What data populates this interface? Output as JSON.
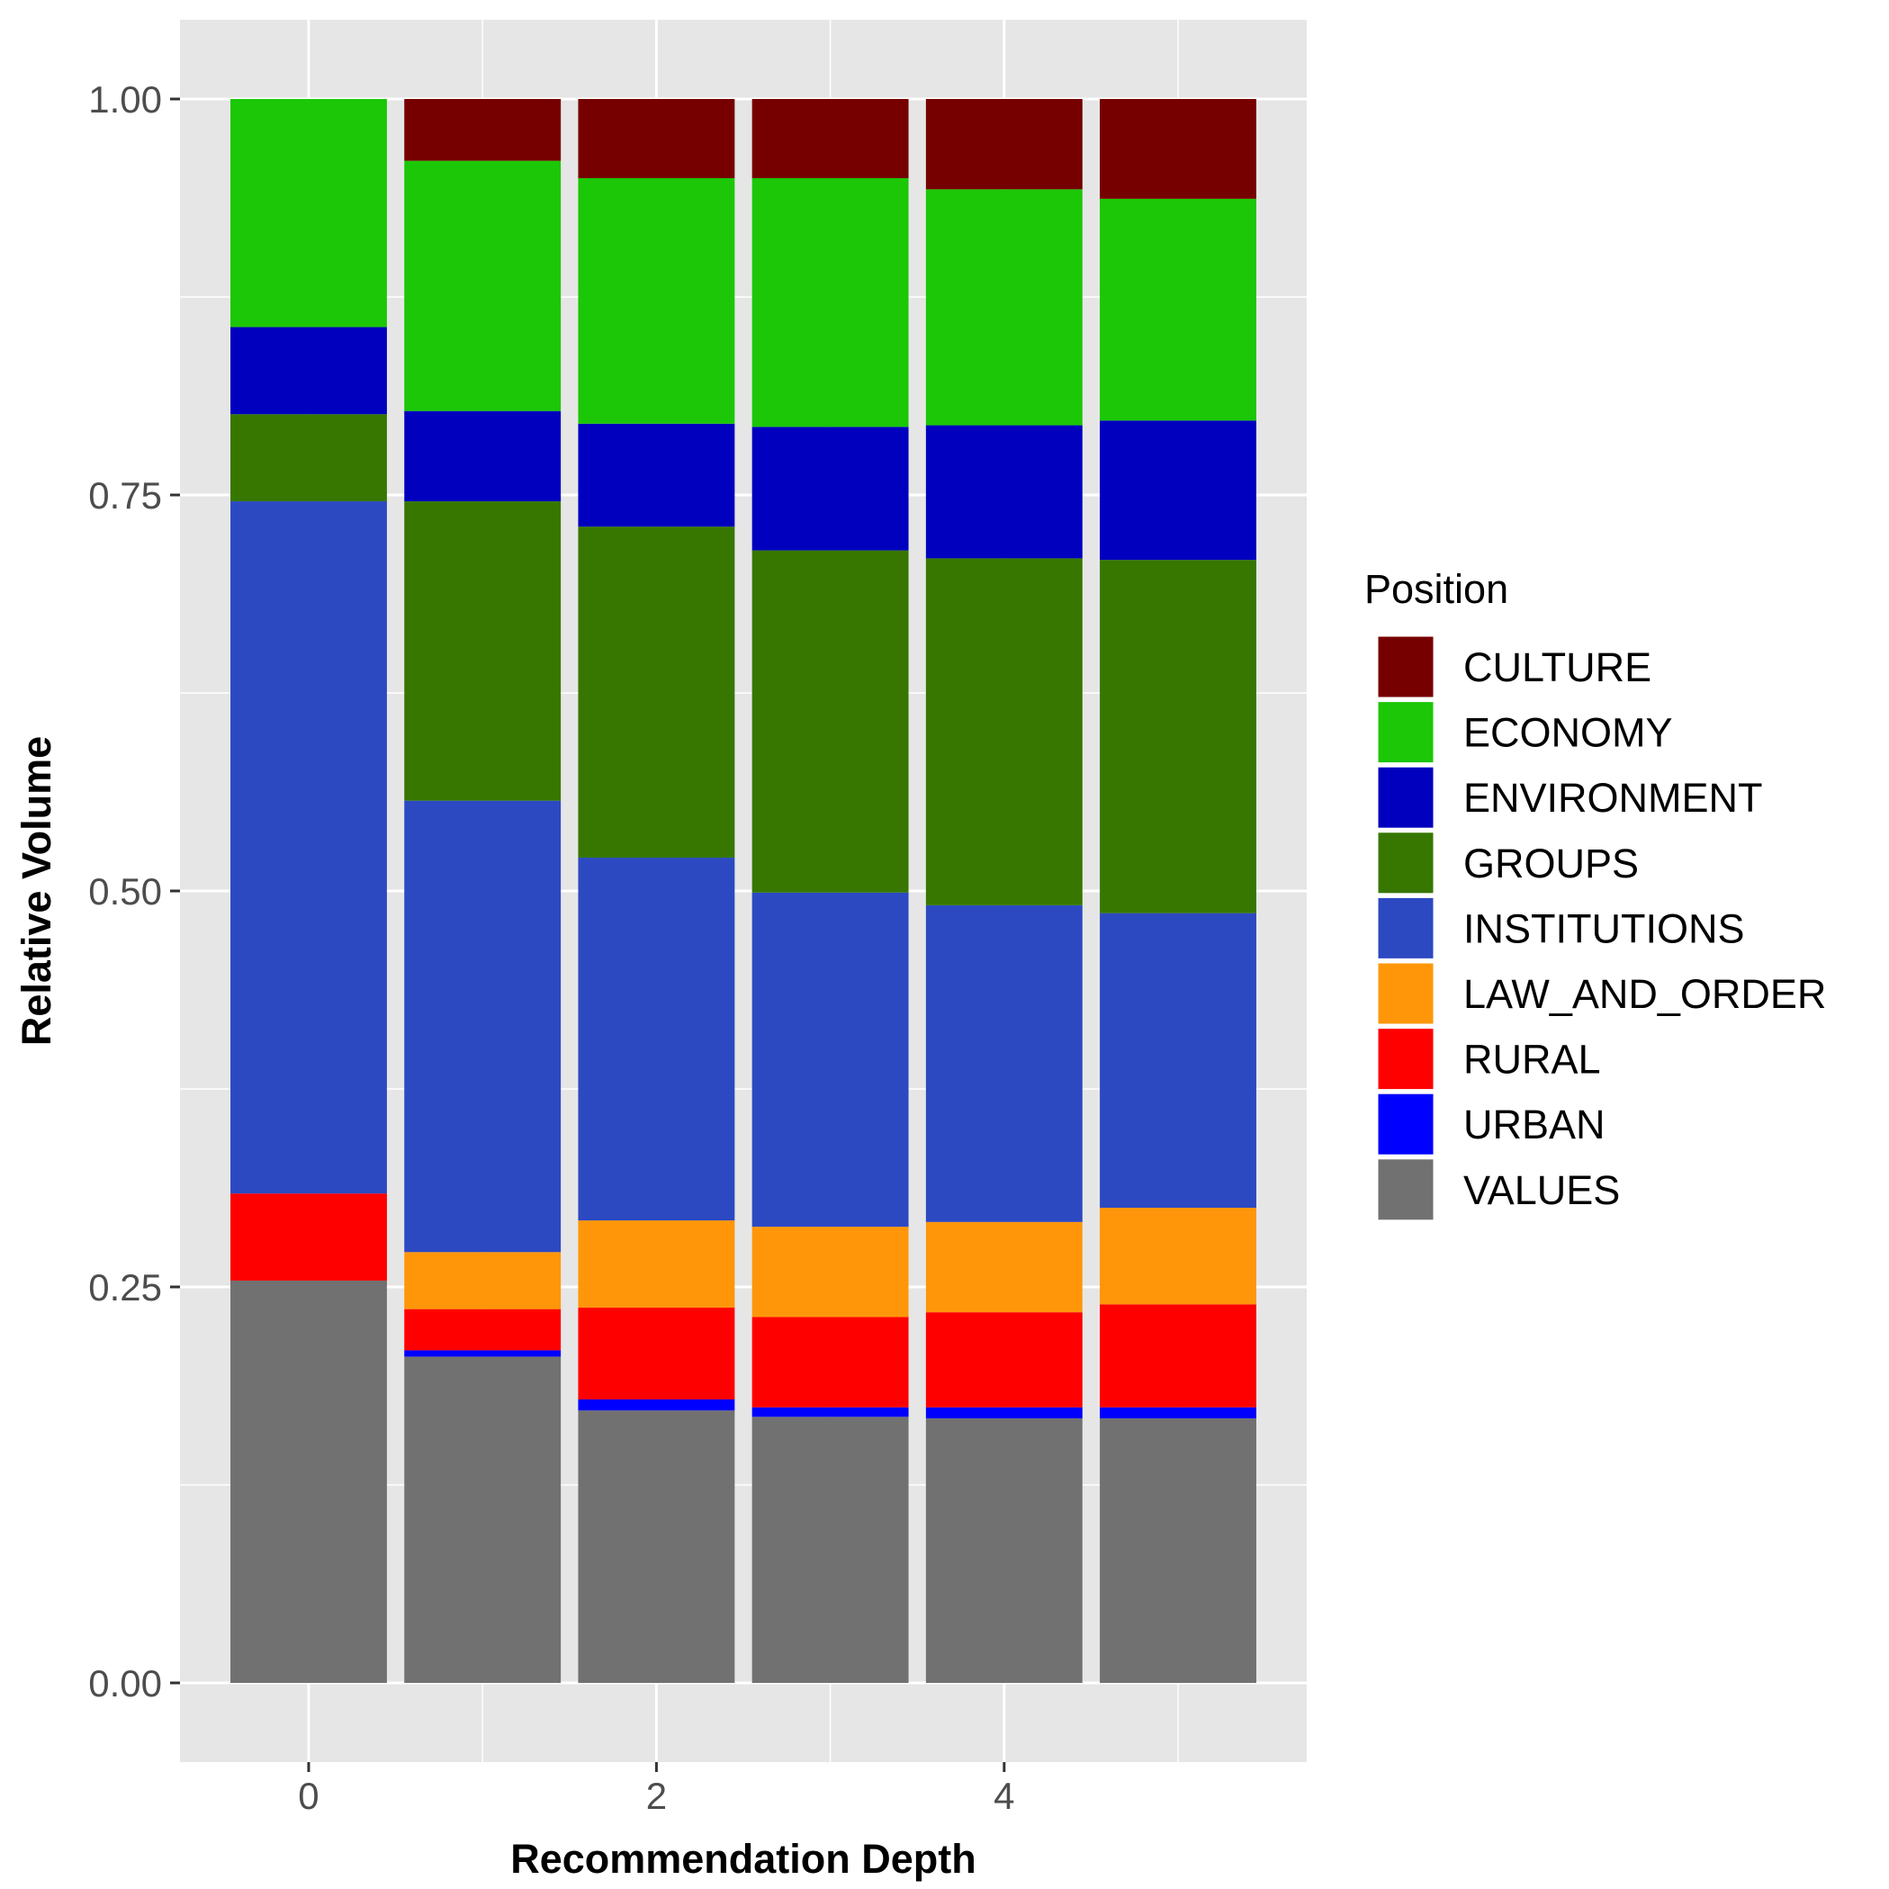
{
  "chart_data": {
    "type": "bar",
    "stacked": true,
    "xlabel": "Recommendation Depth",
    "ylabel": "Relative Volume",
    "x": [
      0,
      1,
      2,
      3,
      4,
      5
    ],
    "x_ticks": [
      "0",
      "2",
      "4"
    ],
    "x_tick_values": [
      0,
      2,
      4
    ],
    "y_ticks": [
      "0.00",
      "0.25",
      "0.50",
      "0.75",
      "1.00"
    ],
    "y_tick_values": [
      0,
      0.25,
      0.5,
      0.75,
      1.0
    ],
    "xlim": [
      -0.74,
      5.74
    ],
    "ylim": [
      -0.05,
      1.05
    ],
    "grid": true,
    "legend": {
      "title": "Position",
      "placement": "right"
    },
    "series": [
      {
        "name": "VALUES",
        "color": "#717171",
        "values": [
          0.254,
          0.206,
          0.172,
          0.168,
          0.167,
          0.167
        ]
      },
      {
        "name": "URBAN",
        "color": "#0000FF",
        "values": [
          0.0,
          0.004,
          0.007,
          0.006,
          0.007,
          0.007
        ]
      },
      {
        "name": "RURAL",
        "color": "#FF0000",
        "values": [
          0.055,
          0.026,
          0.058,
          0.057,
          0.06,
          0.065
        ]
      },
      {
        "name": "LAW_AND_ORDER",
        "color": "#FF9609",
        "values": [
          0.0,
          0.036,
          0.055,
          0.057,
          0.057,
          0.061
        ]
      },
      {
        "name": "INSTITUTIONS",
        "color": "#2C49C2",
        "values": [
          0.437,
          0.285,
          0.229,
          0.211,
          0.2,
          0.186
        ]
      },
      {
        "name": "GROUPS",
        "color": "#377700",
        "values": [
          0.055,
          0.189,
          0.209,
          0.216,
          0.219,
          0.223
        ]
      },
      {
        "name": "ENVIRONMENT",
        "color": "#0000BE",
        "values": [
          0.055,
          0.057,
          0.065,
          0.078,
          0.084,
          0.088
        ]
      },
      {
        "name": "ECONOMY",
        "color": "#1BC706",
        "values": [
          0.144,
          0.158,
          0.155,
          0.157,
          0.149,
          0.14
        ]
      },
      {
        "name": "CULTURE",
        "color": "#760000",
        "values": [
          0.0,
          0.039,
          0.05,
          0.05,
          0.057,
          0.063
        ]
      }
    ],
    "legend_order": [
      "CULTURE",
      "ECONOMY",
      "ENVIRONMENT",
      "GROUPS",
      "INSTITUTIONS",
      "LAW_AND_ORDER",
      "RURAL",
      "URBAN",
      "VALUES"
    ],
    "panel_color": "#E6E6E6",
    "grid_color": "#FFFFFF"
  }
}
